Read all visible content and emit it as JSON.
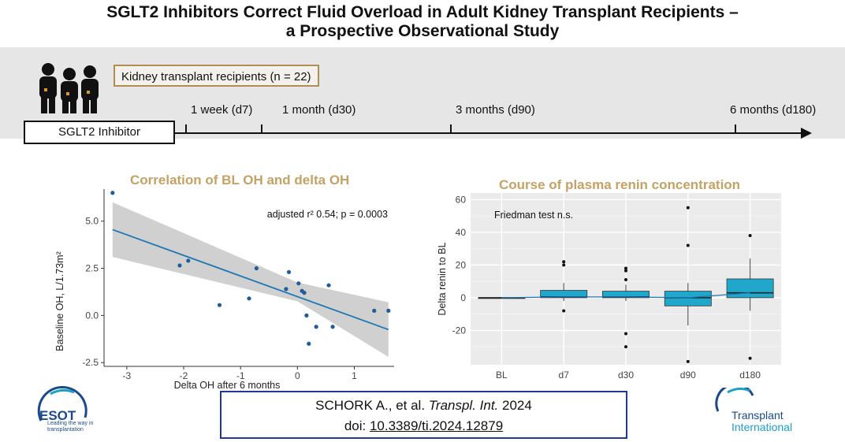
{
  "header": {
    "title_line1": "SGLT2 Inhibitors Correct Fluid Overload in Adult Kidney Transplant Recipients –",
    "title_line2": "a Prospective Observational Study"
  },
  "study": {
    "cohort_label": "Kidney transplant recipients (n = 22)",
    "intervention_label": "SGLT2 Inhibitor",
    "timeline": [
      "1 week (d7)",
      "1 month (d30)",
      "3 months (d90)",
      "6 months (d180)"
    ]
  },
  "chart_data": [
    {
      "type": "scatter",
      "title": "Correlation of BL OH and delta OH",
      "xlabel": "Delta OH after 6 months",
      "ylabel": "Baseline OH, L/1.73m²",
      "annotation": "adjusted r² 0.54; p = 0.0003",
      "xlim": [
        -3.4,
        1.7
      ],
      "ylim": [
        -2.7,
        6.7
      ],
      "xticks": [
        -3,
        -2,
        -1,
        0,
        1
      ],
      "xtick_labels": [
        "-3",
        "-2",
        "-1",
        "0",
        "1"
      ],
      "yticks": [
        -2.5,
        0,
        2.5,
        5
      ],
      "ytick_labels": [
        "-2.5",
        "0.0",
        "2.5",
        "5.0"
      ],
      "points": [
        {
          "x": -3.25,
          "y": 6.5
        },
        {
          "x": -2.07,
          "y": 2.65
        },
        {
          "x": -1.92,
          "y": 2.9
        },
        {
          "x": -1.37,
          "y": 0.55
        },
        {
          "x": -0.85,
          "y": 0.9
        },
        {
          "x": -0.72,
          "y": 2.5
        },
        {
          "x": -0.15,
          "y": 2.3
        },
        {
          "x": -0.2,
          "y": 1.4
        },
        {
          "x": 0.02,
          "y": 1.7
        },
        {
          "x": 0.08,
          "y": 1.3
        },
        {
          "x": 0.12,
          "y": 1.2
        },
        {
          "x": 0.16,
          "y": 0.0
        },
        {
          "x": 0.2,
          "y": -1.5
        },
        {
          "x": 0.33,
          "y": -0.6
        },
        {
          "x": 0.55,
          "y": 1.6
        },
        {
          "x": 0.62,
          "y": -0.6
        },
        {
          "x": 1.35,
          "y": 0.25
        },
        {
          "x": 1.6,
          "y": 0.25
        }
      ],
      "fit_line": {
        "x": [
          -3.25,
          1.6
        ],
        "y": [
          4.55,
          -0.75
        ]
      },
      "confidence_band": {
        "x": [
          -3.25,
          0,
          1.6
        ],
        "upper": [
          6.0,
          1.75,
          0.7
        ],
        "lower": [
          3.1,
          0.75,
          -2.2
        ]
      },
      "colors": {
        "point": "#1f5c99",
        "line": "#1f77b4",
        "band": "#c8c8c8"
      }
    },
    {
      "type": "boxplot",
      "title": "Course of plasma renin concentration",
      "xlabel": "",
      "ylabel": "Delta renin to BL",
      "annotation": "Friedman test n.s.",
      "categories": [
        "BL",
        "d7",
        "d30",
        "d90",
        "d180"
      ],
      "ylim": [
        -41,
        64
      ],
      "yticks": [
        -20,
        0,
        20,
        40,
        60
      ],
      "ytick_labels": [
        "-20",
        "0",
        "20",
        "40",
        "60"
      ],
      "boxes": [
        {
          "q1": 0,
          "median": 0,
          "q3": 0,
          "whisker_low": 0,
          "whisker_high": 0,
          "outliers": []
        },
        {
          "q1": 0,
          "median": 0.5,
          "q3": 4.5,
          "whisker_low": -2,
          "whisker_high": 9,
          "outliers": [
            22,
            20,
            -8
          ]
        },
        {
          "q1": 0,
          "median": 0.5,
          "q3": 4,
          "whisker_low": -2,
          "whisker_high": 8,
          "outliers": [
            18,
            16.5,
            11,
            -22,
            -30
          ]
        },
        {
          "q1": -5,
          "median": 0,
          "q3": 4,
          "whisker_low": -17,
          "whisker_high": 9,
          "outliers": [
            55,
            32,
            -39
          ]
        },
        {
          "q1": 0,
          "median": 3,
          "q3": 11.5,
          "whisker_low": -8,
          "whisker_high": 24,
          "outliers": [
            38,
            -37
          ]
        }
      ],
      "median_line": [
        0,
        0.5,
        0.5,
        0,
        3
      ],
      "colors": {
        "box": "#1fa8cc",
        "panel": "#ebebeb"
      }
    }
  ],
  "citation": {
    "authors": "SCHORK A., et al. ",
    "journal": "Transpl. Int.",
    "year": " 2024",
    "doi_prefix": "doi: ",
    "doi": "10.3389/ti.2024.12879"
  },
  "logos": {
    "esot_name": "ESOT",
    "esot_tagline": "Leading the way in transplantation",
    "ti_line1": "Transplant",
    "ti_line2": "International"
  }
}
